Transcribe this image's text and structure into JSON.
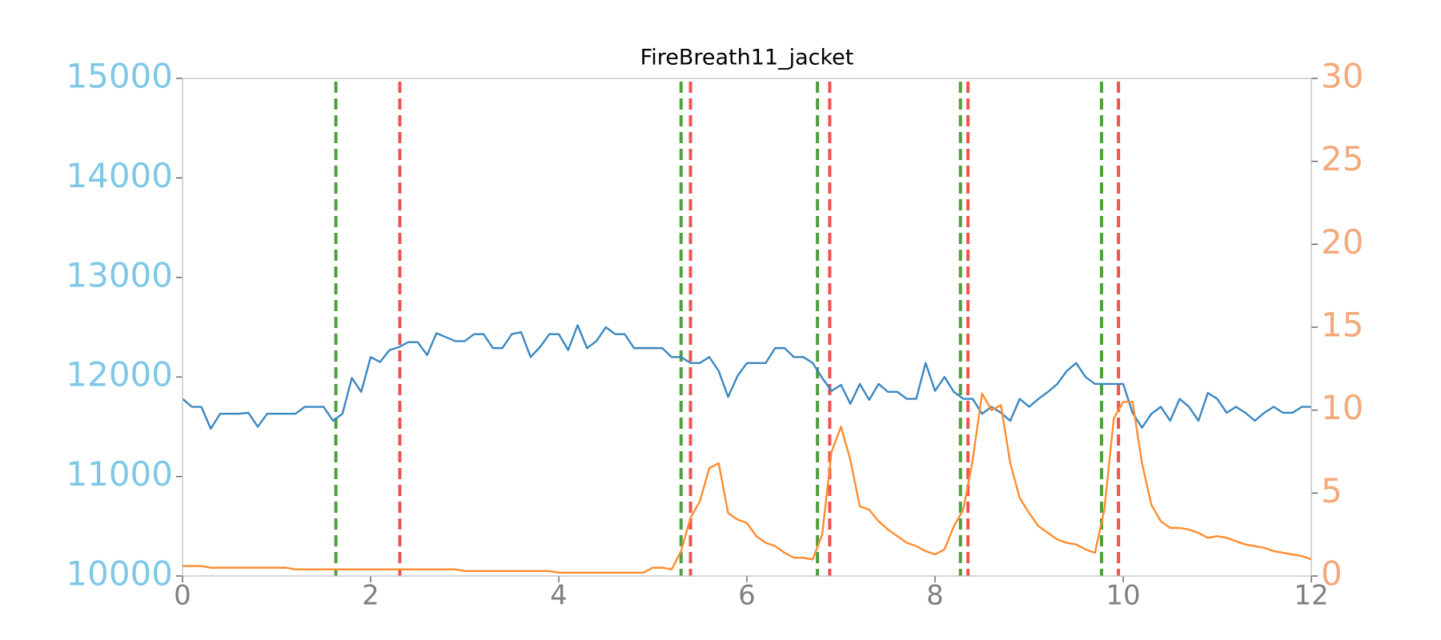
{
  "chart_data": {
    "type": "line",
    "title": "FireBreath11_jacket",
    "x": [
      0,
      0.1,
      0.2,
      0.3,
      0.4,
      0.5,
      0.6,
      0.7,
      0.8,
      0.9,
      1,
      1.1,
      1.2,
      1.3,
      1.4,
      1.5,
      1.6,
      1.7,
      1.8,
      1.9,
      2,
      2.1,
      2.2,
      2.3,
      2.4,
      2.5,
      2.6,
      2.7,
      2.8,
      2.9,
      3,
      3.1,
      3.2,
      3.3,
      3.4,
      3.5,
      3.6,
      3.7,
      3.8,
      3.9,
      4,
      4.1,
      4.2,
      4.3,
      4.4,
      4.5,
      4.6,
      4.7,
      4.8,
      4.9,
      5,
      5.1,
      5.2,
      5.3,
      5.4,
      5.5,
      5.6,
      5.7,
      5.8,
      5.9,
      6,
      6.1,
      6.2,
      6.3,
      6.4,
      6.5,
      6.6,
      6.7,
      6.8,
      6.9,
      7,
      7.1,
      7.2,
      7.3,
      7.4,
      7.5,
      7.6,
      7.7,
      7.8,
      7.9,
      8,
      8.1,
      8.2,
      8.3,
      8.4,
      8.5,
      8.6,
      8.7,
      8.8,
      8.9,
      9,
      9.1,
      9.2,
      9.3,
      9.4,
      9.5,
      9.6,
      9.7,
      9.8,
      9.9,
      10,
      10.1,
      10.2,
      10.3,
      10.4,
      10.5,
      10.6,
      10.7,
      10.8,
      10.9,
      11,
      11.1,
      11.2,
      11.3,
      11.4,
      11.5,
      11.6,
      11.7,
      11.8,
      11.9,
      12
    ],
    "series": [
      {
        "color": "#3a87c0",
        "axis": "y",
        "values": [
          11780,
          11700,
          11700,
          11480,
          11630,
          11630,
          11630,
          11640,
          11500,
          11630,
          11630,
          11630,
          11630,
          11700,
          11700,
          11700,
          11560,
          11630,
          11990,
          11850,
          12200,
          12150,
          12270,
          12300,
          12350,
          12350,
          12220,
          12440,
          12400,
          12360,
          12360,
          12430,
          12430,
          12290,
          12290,
          12430,
          12450,
          12200,
          12300,
          12430,
          12430,
          12270,
          12520,
          12290,
          12360,
          12500,
          12430,
          12430,
          12290,
          12290,
          12290,
          12290,
          12200,
          12200,
          12140,
          12140,
          12200,
          12060,
          11800,
          12010,
          12140,
          12140,
          12140,
          12290,
          12290,
          12200,
          12200,
          12140,
          11990,
          11860,
          11920,
          11730,
          11930,
          11770,
          11930,
          11850,
          11850,
          11780,
          11780,
          12140,
          11860,
          12000,
          11850,
          11780,
          11780,
          11630,
          11700,
          11640,
          11560,
          11780,
          11700,
          11780,
          11850,
          11930,
          12060,
          12140,
          12000,
          11930,
          11930,
          11930,
          11930,
          11640,
          11490,
          11630,
          11700,
          11560,
          11780,
          11700,
          11560,
          11840,
          11780,
          11640,
          11700,
          11640,
          11560,
          11640,
          11700,
          11640,
          11640,
          11700,
          11700
        ]
      },
      {
        "color": "#ff8c2e",
        "axis": "y2",
        "values": [
          0.6,
          0.6,
          0.6,
          0.5,
          0.5,
          0.5,
          0.5,
          0.5,
          0.5,
          0.5,
          0.5,
          0.5,
          0.4,
          0.4,
          0.4,
          0.4,
          0.4,
          0.4,
          0.4,
          0.4,
          0.4,
          0.4,
          0.4,
          0.4,
          0.4,
          0.4,
          0.4,
          0.4,
          0.4,
          0.4,
          0.3,
          0.3,
          0.3,
          0.3,
          0.3,
          0.3,
          0.3,
          0.3,
          0.3,
          0.3,
          0.2,
          0.2,
          0.2,
          0.2,
          0.2,
          0.2,
          0.2,
          0.2,
          0.2,
          0.2,
          0.5,
          0.5,
          0.4,
          1.5,
          3.5,
          4.5,
          6.5,
          6.8,
          3.8,
          3.4,
          3.2,
          2.4,
          2.0,
          1.8,
          1.4,
          1.1,
          1.1,
          1.0,
          2.5,
          7.5,
          9.0,
          7.0,
          4.2,
          4.0,
          3.3,
          2.8,
          2.4,
          2.0,
          1.8,
          1.5,
          1.3,
          1.6,
          3.0,
          4.0,
          7.0,
          11.0,
          10.0,
          10.3,
          6.8,
          4.7,
          3.8,
          3.0,
          2.6,
          2.2,
          2.0,
          1.9,
          1.6,
          1.4,
          4.0,
          9.5,
          10.5,
          10.5,
          6.8,
          4.3,
          3.3,
          2.9,
          2.9,
          2.8,
          2.6,
          2.3,
          2.4,
          2.3,
          2.1,
          1.9,
          1.8,
          1.7,
          1.5,
          1.4,
          1.3,
          1.2,
          1.0
        ]
      }
    ],
    "vlines": [
      {
        "color": "#4e9f3d",
        "x": [
          1.63,
          5.3,
          6.75,
          8.27,
          9.77
        ]
      },
      {
        "color": "#ef5350",
        "x": [
          2.31,
          5.4,
          6.88,
          8.35,
          9.95
        ]
      }
    ],
    "xlim": [
      0,
      12
    ],
    "xticks": [
      0,
      2,
      4,
      6,
      8,
      10,
      12
    ],
    "ylim": [
      10000,
      15000
    ],
    "yticks": [
      10000,
      11000,
      12000,
      13000,
      14000,
      15000
    ],
    "ytick_color": "#7ec8e6",
    "y2lim": [
      0,
      30
    ],
    "y2ticks": [
      0,
      5,
      10,
      15,
      20,
      25,
      30
    ],
    "y2tick_color": "#f4a97a"
  }
}
